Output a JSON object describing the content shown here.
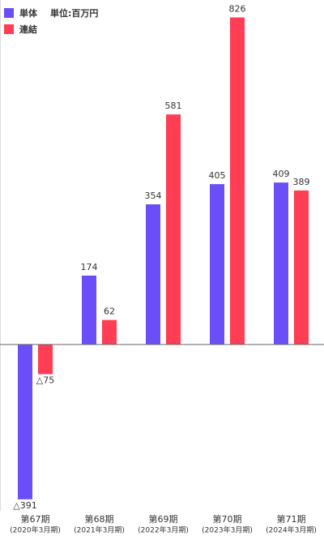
{
  "chart_data": {
    "type": "bar",
    "unit_label": "単位:百万円",
    "categories": [
      [
        "第67期",
        "(2020年3月期)"
      ],
      [
        "第68期",
        "(2021年3月期)"
      ],
      [
        "第69期",
        "(2022年3月期)"
      ],
      [
        "第70期",
        "(2023年3月期)"
      ],
      [
        "第71期",
        "(2024年3月期)"
      ]
    ],
    "series": [
      {
        "name": "単体",
        "color": "#6b4ef7",
        "values": [
          -391,
          174,
          354,
          405,
          409
        ],
        "value_labels": [
          "△391",
          "174",
          "354",
          "405",
          "409"
        ]
      },
      {
        "name": "連結",
        "color": "#ff3d55",
        "values": [
          -75,
          62,
          581,
          826,
          389
        ],
        "value_labels": [
          "△75",
          "62",
          "581",
          "826",
          "389"
        ]
      }
    ],
    "ylim": [
      -420,
      870
    ]
  }
}
